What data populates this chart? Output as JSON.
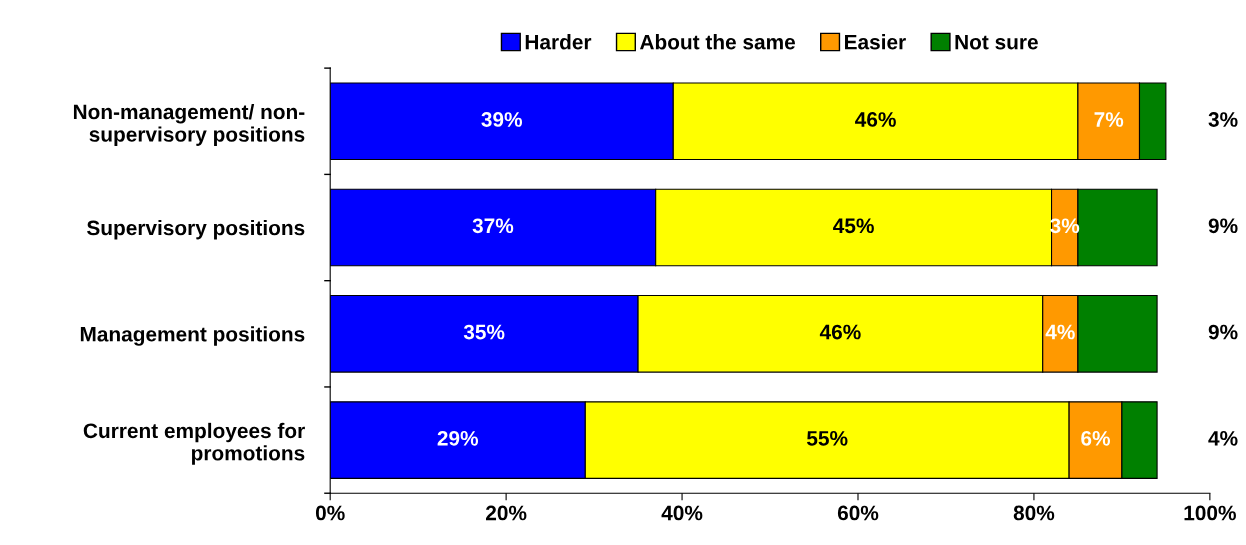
{
  "chart_data": {
    "type": "bar",
    "orientation": "horizontal",
    "stacked": true,
    "legend": "top",
    "grid": false,
    "categories": [
      "Non-management/ non-\nsupervisory positions",
      "Supervisory positions",
      "Management positions",
      "Current employees for\npromotions"
    ],
    "series": [
      {
        "name": "Harder",
        "color": "#0000ff",
        "values": [
          39,
          37,
          35,
          29
        ],
        "value_labels": [
          "39%",
          "37%",
          "35%",
          "29%"
        ]
      },
      {
        "name": "About the same",
        "color": "#ffff00",
        "values": [
          46,
          45,
          46,
          55
        ],
        "value_labels": [
          "46%",
          "45%",
          "46%",
          "55%"
        ]
      },
      {
        "name": "Easier",
        "color": "#ff9900",
        "values": [
          7,
          3,
          4,
          6
        ],
        "value_labels": [
          "7%",
          "3%",
          "4%",
          "6%"
        ]
      },
      {
        "name": "Not sure",
        "color": "#008000",
        "values": [
          3,
          9,
          9,
          4
        ],
        "value_labels": [
          "3%",
          "9%",
          "9%",
          "4%"
        ]
      }
    ],
    "xlim": [
      0,
      100
    ],
    "xticks": [
      {
        "value": 0,
        "label": "0%"
      },
      {
        "value": 20,
        "label": "20%"
      },
      {
        "value": 40,
        "label": "40%"
      },
      {
        "value": 60,
        "label": "60%"
      },
      {
        "value": 80,
        "label": "80%"
      },
      {
        "value": 100,
        "label": "100%"
      }
    ]
  }
}
